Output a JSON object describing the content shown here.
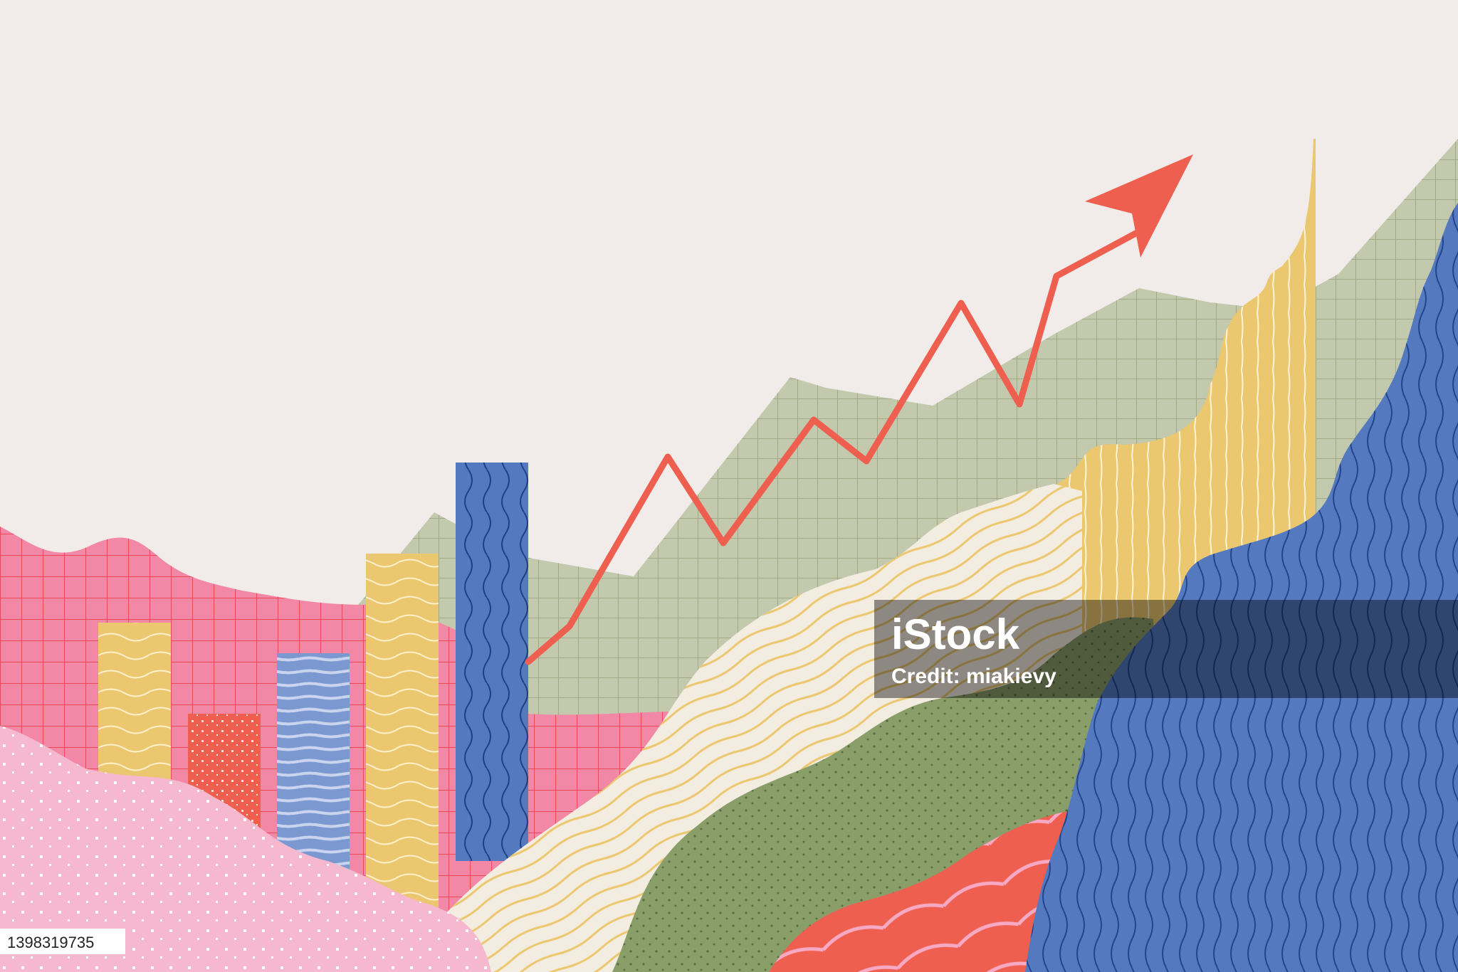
{
  "colors": {
    "background": "#f1ece9",
    "sage": "#c2c9ad",
    "pink": "#f287a6",
    "light_pink": "#f6b8ce",
    "yellow": "#ebc76f",
    "cream": "#f3ece0",
    "blue": "#5479be",
    "red": "#ee5f50",
    "moss": "#8a9e6a",
    "trend": "#ee5f50"
  },
  "icons": {
    "trend": "up-arrow-icon"
  },
  "watermark": {
    "logo": "iStock",
    "credit": "Credit: miakievy"
  },
  "image_id": "1398319735"
}
